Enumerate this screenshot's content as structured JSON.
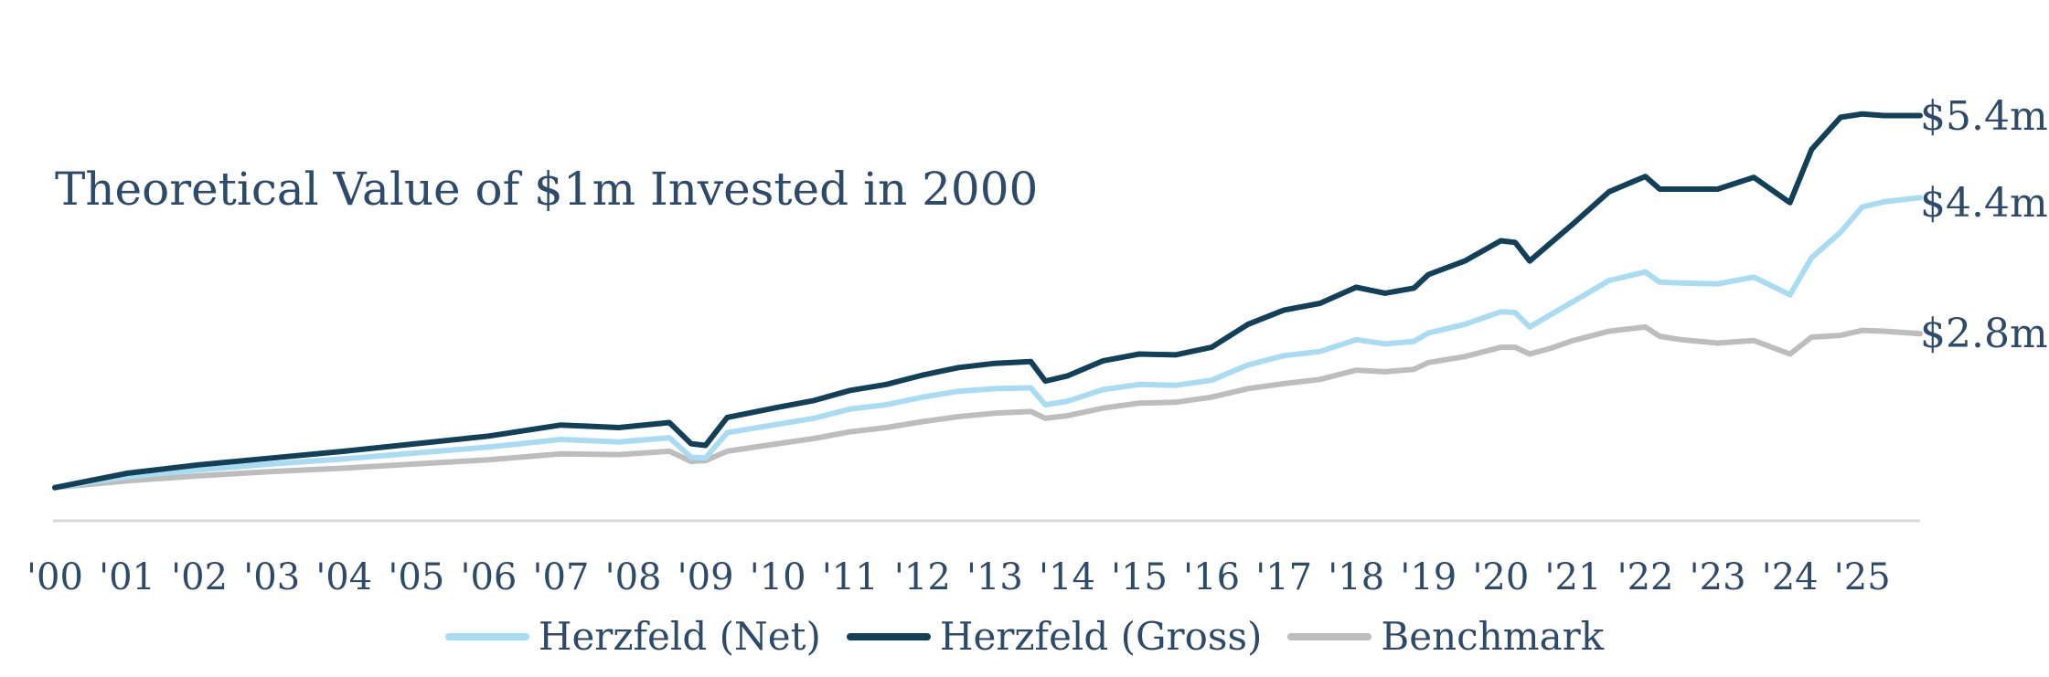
{
  "chart_data": {
    "type": "line",
    "title": "Theoretical Value of $1m Invested in 2000",
    "xlabel": "",
    "ylabel": "",
    "x_ticks": [
      "'00",
      "'01",
      "'02",
      "'03",
      "'04",
      "'05",
      "'06",
      "'07",
      "'08",
      "'09",
      "'10",
      "'11",
      "'12",
      "'13",
      "'14",
      "'15",
      "'16",
      "'17",
      "'18",
      "'19",
      "'20",
      "'21",
      "'22",
      "'23",
      "'24",
      "'25"
    ],
    "x_range": [
      2000.0,
      2025.8
    ],
    "y_unit": "$m",
    "ylim": [
      0.5,
      5.6
    ],
    "grid": false,
    "legend_position": "bottom-center",
    "end_labels": [
      "$5.4m",
      "$4.4m",
      "$2.8m"
    ],
    "series": [
      {
        "name": "Herzfeld (Net)",
        "color": "#a9dcf3",
        "points": [
          [
            2000.0,
            1.0
          ],
          [
            2001.0,
            1.13
          ],
          [
            2002.0,
            1.21
          ],
          [
            2003.0,
            1.28
          ],
          [
            2004.0,
            1.34
          ],
          [
            2005.0,
            1.41
          ],
          [
            2006.0,
            1.48
          ],
          [
            2007.0,
            1.57
          ],
          [
            2007.8,
            1.54
          ],
          [
            2008.5,
            1.59
          ],
          [
            2008.8,
            1.36
          ],
          [
            2009.0,
            1.35
          ],
          [
            2009.3,
            1.65
          ],
          [
            2010.0,
            1.75
          ],
          [
            2010.5,
            1.82
          ],
          [
            2011.0,
            1.93
          ],
          [
            2011.5,
            1.98
          ],
          [
            2012.0,
            2.07
          ],
          [
            2012.5,
            2.14
          ],
          [
            2013.0,
            2.17
          ],
          [
            2013.5,
            2.18
          ],
          [
            2013.7,
            1.98
          ],
          [
            2014.0,
            2.02
          ],
          [
            2014.5,
            2.16
          ],
          [
            2015.0,
            2.22
          ],
          [
            2015.5,
            2.21
          ],
          [
            2016.0,
            2.27
          ],
          [
            2016.5,
            2.45
          ],
          [
            2017.0,
            2.56
          ],
          [
            2017.5,
            2.61
          ],
          [
            2018.0,
            2.75
          ],
          [
            2018.4,
            2.7
          ],
          [
            2018.8,
            2.73
          ],
          [
            2019.0,
            2.83
          ],
          [
            2019.5,
            2.93
          ],
          [
            2020.0,
            3.08
          ],
          [
            2020.2,
            3.07
          ],
          [
            2020.4,
            2.9
          ],
          [
            2020.7,
            3.05
          ],
          [
            2021.0,
            3.2
          ],
          [
            2021.5,
            3.45
          ],
          [
            2022.0,
            3.55
          ],
          [
            2022.2,
            3.43
          ],
          [
            2022.5,
            3.42
          ],
          [
            2023.0,
            3.41
          ],
          [
            2023.5,
            3.49
          ],
          [
            2024.0,
            3.28
          ],
          [
            2024.3,
            3.72
          ],
          [
            2024.7,
            4.02
          ],
          [
            2025.0,
            4.32
          ],
          [
            2025.3,
            4.38
          ],
          [
            2025.8,
            4.43
          ]
        ]
      },
      {
        "name": "Herzfeld (Gross)",
        "color": "#124059",
        "points": [
          [
            2000.0,
            1.0
          ],
          [
            2001.0,
            1.17
          ],
          [
            2002.0,
            1.27
          ],
          [
            2003.0,
            1.35
          ],
          [
            2004.0,
            1.43
          ],
          [
            2005.0,
            1.52
          ],
          [
            2006.0,
            1.61
          ],
          [
            2007.0,
            1.74
          ],
          [
            2007.8,
            1.71
          ],
          [
            2008.5,
            1.77
          ],
          [
            2008.8,
            1.52
          ],
          [
            2009.0,
            1.5
          ],
          [
            2009.3,
            1.83
          ],
          [
            2010.0,
            1.95
          ],
          [
            2010.5,
            2.03
          ],
          [
            2011.0,
            2.15
          ],
          [
            2011.5,
            2.22
          ],
          [
            2012.0,
            2.33
          ],
          [
            2012.5,
            2.42
          ],
          [
            2013.0,
            2.47
          ],
          [
            2013.5,
            2.49
          ],
          [
            2013.7,
            2.26
          ],
          [
            2014.0,
            2.32
          ],
          [
            2014.5,
            2.5
          ],
          [
            2015.0,
            2.58
          ],
          [
            2015.5,
            2.57
          ],
          [
            2016.0,
            2.66
          ],
          [
            2016.5,
            2.93
          ],
          [
            2017.0,
            3.1
          ],
          [
            2017.5,
            3.18
          ],
          [
            2018.0,
            3.37
          ],
          [
            2018.4,
            3.3
          ],
          [
            2018.8,
            3.36
          ],
          [
            2019.0,
            3.52
          ],
          [
            2019.5,
            3.68
          ],
          [
            2020.0,
            3.92
          ],
          [
            2020.2,
            3.9
          ],
          [
            2020.4,
            3.68
          ],
          [
            2020.7,
            3.9
          ],
          [
            2021.0,
            4.12
          ],
          [
            2021.5,
            4.5
          ],
          [
            2022.0,
            4.68
          ],
          [
            2022.2,
            4.53
          ],
          [
            2022.5,
            4.53
          ],
          [
            2023.0,
            4.53
          ],
          [
            2023.5,
            4.67
          ],
          [
            2024.0,
            4.37
          ],
          [
            2024.3,
            5.0
          ],
          [
            2024.7,
            5.38
          ],
          [
            2025.0,
            5.42
          ],
          [
            2025.3,
            5.4
          ],
          [
            2025.8,
            5.4
          ]
        ]
      },
      {
        "name": "Benchmark",
        "color": "#bdbdbd",
        "points": [
          [
            2000.0,
            1.0
          ],
          [
            2001.0,
            1.08
          ],
          [
            2002.0,
            1.14
          ],
          [
            2003.0,
            1.19
          ],
          [
            2004.0,
            1.23
          ],
          [
            2005.0,
            1.28
          ],
          [
            2006.0,
            1.33
          ],
          [
            2007.0,
            1.4
          ],
          [
            2007.8,
            1.39
          ],
          [
            2008.5,
            1.43
          ],
          [
            2008.8,
            1.31
          ],
          [
            2009.0,
            1.32
          ],
          [
            2009.3,
            1.43
          ],
          [
            2010.0,
            1.52
          ],
          [
            2010.5,
            1.58
          ],
          [
            2011.0,
            1.66
          ],
          [
            2011.5,
            1.71
          ],
          [
            2012.0,
            1.78
          ],
          [
            2012.5,
            1.84
          ],
          [
            2013.0,
            1.88
          ],
          [
            2013.5,
            1.9
          ],
          [
            2013.7,
            1.82
          ],
          [
            2014.0,
            1.85
          ],
          [
            2014.5,
            1.94
          ],
          [
            2015.0,
            2.0
          ],
          [
            2015.5,
            2.01
          ],
          [
            2016.0,
            2.07
          ],
          [
            2016.5,
            2.17
          ],
          [
            2017.0,
            2.23
          ],
          [
            2017.5,
            2.28
          ],
          [
            2018.0,
            2.39
          ],
          [
            2018.4,
            2.37
          ],
          [
            2018.8,
            2.4
          ],
          [
            2019.0,
            2.48
          ],
          [
            2019.5,
            2.55
          ],
          [
            2020.0,
            2.66
          ],
          [
            2020.2,
            2.66
          ],
          [
            2020.4,
            2.58
          ],
          [
            2020.7,
            2.65
          ],
          [
            2021.0,
            2.74
          ],
          [
            2021.5,
            2.85
          ],
          [
            2022.0,
            2.9
          ],
          [
            2022.2,
            2.79
          ],
          [
            2022.5,
            2.75
          ],
          [
            2023.0,
            2.71
          ],
          [
            2023.5,
            2.74
          ],
          [
            2024.0,
            2.58
          ],
          [
            2024.3,
            2.78
          ],
          [
            2024.7,
            2.8
          ],
          [
            2025.0,
            2.86
          ],
          [
            2025.3,
            2.85
          ],
          [
            2025.8,
            2.82
          ]
        ]
      }
    ]
  }
}
